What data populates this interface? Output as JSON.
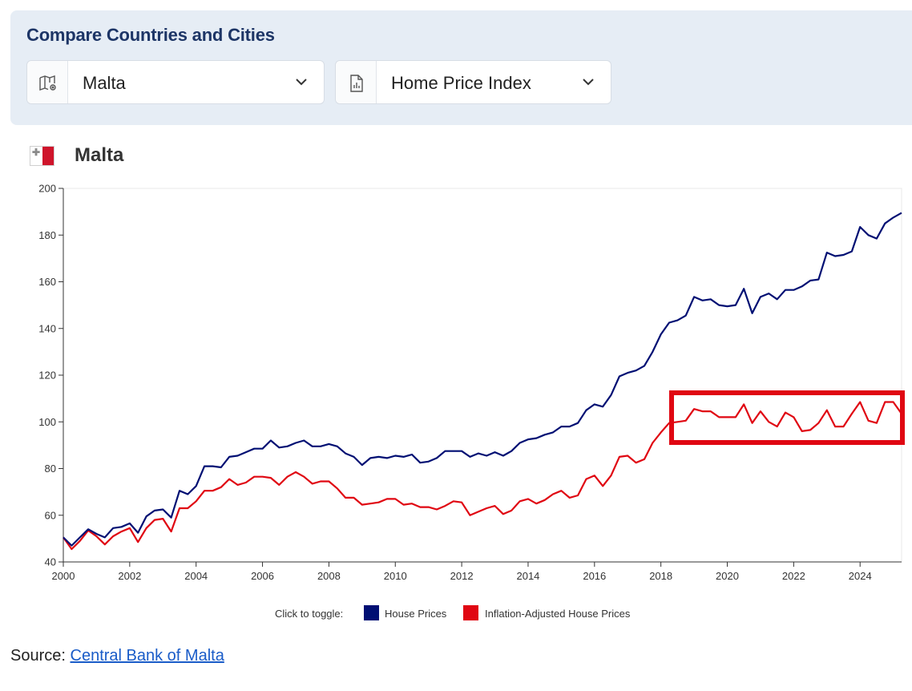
{
  "panel": {
    "title": "Compare Countries and Cities",
    "region_select": {
      "value": "Malta",
      "icon": "map-pin-icon"
    },
    "metric_select": {
      "value": "Home Price Index",
      "icon": "chart-document-icon"
    }
  },
  "heading": {
    "country": "Malta",
    "flag": "malta-flag"
  },
  "chart_data": {
    "type": "line",
    "x_axis": {
      "min": 2000,
      "max": 2025.25,
      "ticks": [
        2000,
        2002,
        2004,
        2006,
        2008,
        2010,
        2012,
        2014,
        2016,
        2018,
        2020,
        2022,
        2024
      ]
    },
    "y_axis": {
      "min": 40,
      "max": 200,
      "ticks": [
        40,
        60,
        80,
        100,
        120,
        140,
        160,
        180,
        200
      ]
    },
    "grid": false,
    "legend": {
      "prompt": "Click to toggle:",
      "placement": "bottom-center"
    },
    "series": [
      {
        "name": "House Prices",
        "color": "#000f73",
        "x": [
          2000.0,
          2000.25,
          2000.5,
          2000.75,
          2001.0,
          2001.25,
          2001.5,
          2001.75,
          2002.0,
          2002.25,
          2002.5,
          2002.75,
          2003.0,
          2003.25,
          2003.5,
          2003.75,
          2004.0,
          2004.25,
          2004.5,
          2004.75,
          2005.0,
          2005.25,
          2005.5,
          2005.75,
          2006.0,
          2006.25,
          2006.5,
          2006.75,
          2007.0,
          2007.25,
          2007.5,
          2007.75,
          2008.0,
          2008.25,
          2008.5,
          2008.75,
          2009.0,
          2009.25,
          2009.5,
          2009.75,
          2010.0,
          2010.25,
          2010.5,
          2010.75,
          2011.0,
          2011.25,
          2011.5,
          2011.75,
          2012.0,
          2012.25,
          2012.5,
          2012.75,
          2013.0,
          2013.25,
          2013.5,
          2013.75,
          2014.0,
          2014.25,
          2014.5,
          2014.75,
          2015.0,
          2015.25,
          2015.5,
          2015.75,
          2016.0,
          2016.25,
          2016.5,
          2016.75,
          2017.0,
          2017.25,
          2017.5,
          2017.75,
          2018.0,
          2018.25,
          2018.5,
          2018.75,
          2019.0,
          2019.25,
          2019.5,
          2019.75,
          2020.0,
          2020.25,
          2020.5,
          2020.75,
          2021.0,
          2021.25,
          2021.5,
          2021.75,
          2022.0,
          2022.25,
          2022.5,
          2022.75,
          2023.0,
          2023.25,
          2023.5,
          2023.75,
          2024.0,
          2024.25,
          2024.5,
          2024.75,
          2025.0,
          2025.25
        ],
        "y": [
          50.5,
          47.0,
          50.5,
          54.0,
          52.0,
          50.5,
          54.5,
          55.0,
          56.5,
          52.5,
          59.5,
          62.0,
          62.5,
          59.0,
          70.5,
          69.0,
          72.5,
          81.0,
          81.0,
          80.5,
          85.0,
          85.5,
          87.0,
          88.5,
          88.5,
          92.0,
          89.0,
          89.5,
          91.0,
          92.0,
          89.5,
          89.5,
          90.5,
          89.5,
          86.5,
          85.0,
          81.5,
          84.5,
          85.0,
          84.5,
          85.5,
          85.0,
          86.0,
          82.5,
          83.0,
          84.5,
          87.5,
          87.5,
          87.5,
          85.0,
          86.5,
          85.5,
          87.0,
          85.5,
          87.5,
          91.0,
          92.5,
          93.0,
          94.5,
          95.5,
          98.0,
          98.0,
          99.5,
          105.0,
          107.5,
          106.5,
          111.5,
          119.5,
          121.0,
          122.0,
          124.0,
          130.0,
          137.5,
          142.5,
          143.5,
          145.5,
          153.5,
          152.0,
          152.5,
          150.0,
          149.5,
          150.0,
          157.0,
          146.5,
          153.5,
          155.0,
          152.5,
          156.5,
          156.5,
          158.0,
          160.5,
          161.0,
          172.5,
          171.0,
          171.5,
          173.0,
          183.5,
          180.0,
          178.5,
          185.0,
          187.5,
          189.5
        ]
      },
      {
        "name": "Inflation-Adjusted House Prices",
        "color": "#e00712",
        "x": [
          2000.0,
          2000.25,
          2000.5,
          2000.75,
          2001.0,
          2001.25,
          2001.5,
          2001.75,
          2002.0,
          2002.25,
          2002.5,
          2002.75,
          2003.0,
          2003.25,
          2003.5,
          2003.75,
          2004.0,
          2004.25,
          2004.5,
          2004.75,
          2005.0,
          2005.25,
          2005.5,
          2005.75,
          2006.0,
          2006.25,
          2006.5,
          2006.75,
          2007.0,
          2007.25,
          2007.5,
          2007.75,
          2008.0,
          2008.25,
          2008.5,
          2008.75,
          2009.0,
          2009.25,
          2009.5,
          2009.75,
          2010.0,
          2010.25,
          2010.5,
          2010.75,
          2011.0,
          2011.25,
          2011.5,
          2011.75,
          2012.0,
          2012.25,
          2012.5,
          2012.75,
          2013.0,
          2013.25,
          2013.5,
          2013.75,
          2014.0,
          2014.25,
          2014.5,
          2014.75,
          2015.0,
          2015.25,
          2015.5,
          2015.75,
          2016.0,
          2016.25,
          2016.5,
          2016.75,
          2017.0,
          2017.25,
          2017.5,
          2017.75,
          2018.0,
          2018.25,
          2018.5,
          2018.75,
          2019.0,
          2019.25,
          2019.5,
          2019.75,
          2020.0,
          2020.25,
          2020.5,
          2020.75,
          2021.0,
          2021.25,
          2021.5,
          2021.75,
          2022.0,
          2022.25,
          2022.5,
          2022.75,
          2023.0,
          2023.25,
          2023.5,
          2023.75,
          2024.0,
          2024.25,
          2024.5,
          2024.75,
          2025.0,
          2025.25
        ],
        "y": [
          50.5,
          45.5,
          49.0,
          53.5,
          51.0,
          47.5,
          51.0,
          53.0,
          54.5,
          48.5,
          54.5,
          58.0,
          58.5,
          53.0,
          63.0,
          63.0,
          66.0,
          70.5,
          70.5,
          72.0,
          75.5,
          73.0,
          74.0,
          76.5,
          76.5,
          76.0,
          73.0,
          76.5,
          78.5,
          76.5,
          73.5,
          74.5,
          74.5,
          71.5,
          67.5,
          67.5,
          64.5,
          65.0,
          65.5,
          67.0,
          67.0,
          64.5,
          65.0,
          63.5,
          63.5,
          62.5,
          64.0,
          66.0,
          65.5,
          60.0,
          61.5,
          63.0,
          64.0,
          60.5,
          62.0,
          66.0,
          67.0,
          65.0,
          66.5,
          69.0,
          70.5,
          67.5,
          68.5,
          75.5,
          77.0,
          72.5,
          77.0,
          85.0,
          85.5,
          82.5,
          84.0,
          91.0,
          95.5,
          99.5,
          100.0,
          100.5,
          105.5,
          104.5,
          104.5,
          102.0,
          102.0,
          102.0,
          107.5,
          99.5,
          104.5,
          100.0,
          98.0,
          104.0,
          102.0,
          96.0,
          96.5,
          99.5,
          105.0,
          98.0,
          98.0,
          103.5,
          108.5,
          100.5,
          99.5,
          108.5,
          108.5,
          103.5
        ]
      }
    ]
  },
  "source": {
    "label": "Source:",
    "link_text": "Central Bank of Malta"
  }
}
